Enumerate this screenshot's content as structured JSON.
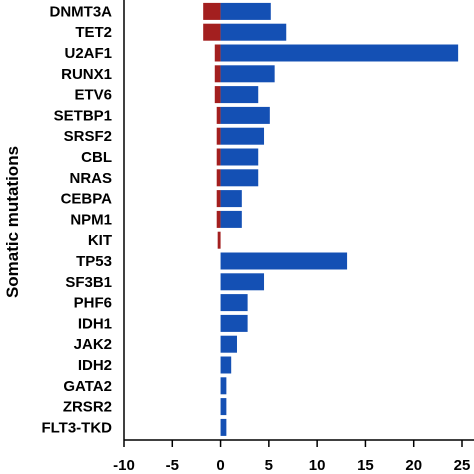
{
  "chart_data": {
    "type": "bar",
    "orientation": "horizontal",
    "ylabel": "Somatic mutations",
    "xlabel": "",
    "xlim": [
      -10,
      25
    ],
    "xticks": [
      -10,
      -5,
      0,
      5,
      10,
      15,
      20,
      25
    ],
    "grid": false,
    "categories": [
      "DNMT3A",
      "TET2",
      "U2AF1",
      "RUNX1",
      "ETV6",
      "SETBP1",
      "SRSF2",
      "CBL",
      "NRAS",
      "CEBPA",
      "NPM1",
      "KIT",
      "TP53",
      "SF3B1",
      "PHF6",
      "IDH1",
      "JAK2",
      "IDH2",
      "GATA2",
      "ZRSR2",
      "FLT3-TKD"
    ],
    "series": [
      {
        "color": "#a31f1f",
        "values": [
          -1.8,
          -1.8,
          -0.6,
          -0.6,
          -0.6,
          -0.4,
          -0.4,
          -0.4,
          -0.4,
          -0.4,
          -0.4,
          -0.3,
          0,
          0,
          0,
          0,
          0,
          0,
          0,
          0,
          0
        ]
      },
      {
        "color": "#1450b4",
        "values": [
          5.2,
          6.8,
          24.6,
          5.6,
          3.9,
          5.1,
          4.5,
          3.9,
          3.9,
          2.2,
          2.2,
          0,
          13.1,
          4.5,
          2.8,
          2.8,
          1.7,
          1.1,
          0.6,
          0.6,
          0.6
        ]
      }
    ]
  }
}
